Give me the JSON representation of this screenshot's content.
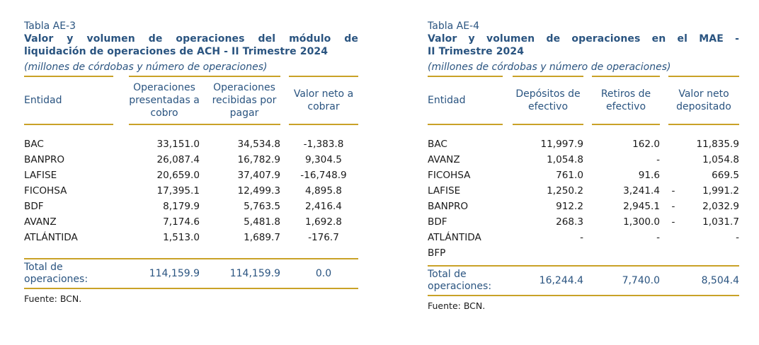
{
  "left": {
    "caption": "Tabla AE-3",
    "title_line1": "Valor y volumen de operaciones del módulo de",
    "title_line2": "liquidación de operaciones de ACH - II Trimestre 2024",
    "units": "(millones de córdobas y número de operaciones)",
    "headers": [
      "Entidad",
      "Operaciones presentadas a cobro",
      "Operaciones recibidas por pagar",
      "Valor neto a cobrar"
    ],
    "rows": [
      [
        "BAC",
        "33,151.0",
        "34,534.8",
        "-1,383.8"
      ],
      [
        "BANPRO",
        "26,087.4",
        "16,782.9",
        "9,304.5"
      ],
      [
        "LAFISE",
        "20,659.0",
        "37,407.9",
        "-16,748.9"
      ],
      [
        "FICOHSA",
        "17,395.1",
        "12,499.3",
        "4,895.8"
      ],
      [
        "BDF",
        "8,179.9",
        "5,763.5",
        "2,416.4"
      ],
      [
        "AVANZ",
        "7,174.6",
        "5,481.8",
        "1,692.8"
      ],
      [
        "ATLÁNTIDA",
        "1,513.0",
        "1,689.7",
        "-176.7"
      ]
    ],
    "total": [
      "Total de operaciones:",
      "114,159.9",
      "114,159.9",
      "0.0"
    ],
    "source": "Fuente: BCN."
  },
  "right": {
    "caption": "Tabla AE-4",
    "title_line1": "Valor y volumen de operaciones en el MAE -",
    "title_line2": "II Trimestre 2024",
    "units": "(millones de córdobas y número de operaciones)",
    "headers": [
      "Entidad",
      "Depósitos de efectivo",
      "Retiros de efectivo",
      "Valor neto depositado"
    ],
    "rows": [
      [
        "BAC",
        "11,997.9",
        "162.0",
        "",
        "11,835.9"
      ],
      [
        "AVANZ",
        "1,054.8",
        "-",
        "",
        "1,054.8"
      ],
      [
        "FICOHSA",
        "761.0",
        "91.6",
        "",
        "669.5"
      ],
      [
        "LAFISE",
        "1,250.2",
        "3,241.4",
        "-",
        "1,991.2"
      ],
      [
        "BANPRO",
        "912.2",
        "2,945.1",
        "-",
        "2,032.9"
      ],
      [
        "BDF",
        "268.3",
        "1,300.0",
        "-",
        "1,031.7"
      ],
      [
        "ATLÁNTIDA",
        "-",
        "-",
        "",
        "-"
      ],
      [
        "BFP",
        "",
        "",
        "",
        ""
      ]
    ],
    "total": [
      "Total de operaciones:",
      "16,244.4",
      "7,740.0",
      "8,504.4"
    ],
    "source": "Fuente: BCN."
  }
}
